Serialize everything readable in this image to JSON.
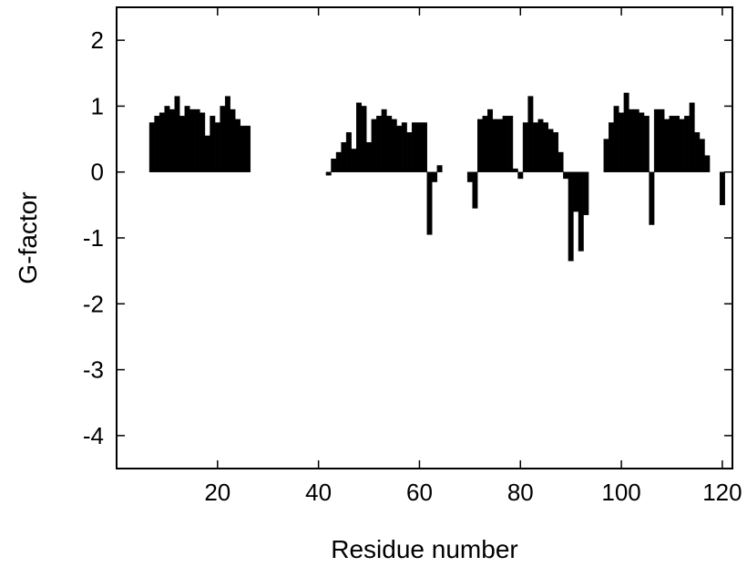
{
  "chart_data": {
    "type": "bar",
    "xlabel": "Residue number",
    "ylabel": "G-factor",
    "xlim": [
      0,
      122
    ],
    "ylim": [
      -4.5,
      2.5
    ],
    "xticks": [
      20,
      40,
      60,
      80,
      100,
      120
    ],
    "yticks": [
      -4,
      -3,
      -2,
      -1,
      0,
      1,
      2
    ],
    "grid": false,
    "legend": "none",
    "bar_color": "#000000",
    "x": [
      7,
      8,
      9,
      10,
      11,
      12,
      13,
      14,
      15,
      16,
      17,
      18,
      19,
      20,
      21,
      22,
      23,
      24,
      25,
      26,
      42,
      43,
      44,
      45,
      46,
      47,
      48,
      49,
      50,
      51,
      52,
      53,
      54,
      55,
      56,
      57,
      58,
      59,
      60,
      61,
      62,
      63,
      64,
      70,
      71,
      72,
      73,
      74,
      75,
      76,
      77,
      78,
      79,
      80,
      81,
      82,
      83,
      84,
      85,
      86,
      87,
      88,
      89,
      90,
      91,
      92,
      93,
      97,
      98,
      99,
      100,
      101,
      102,
      103,
      104,
      105,
      106,
      107,
      108,
      109,
      110,
      111,
      112,
      113,
      114,
      115,
      116,
      117,
      118,
      119,
      120
    ],
    "values": [
      0.75,
      0.85,
      0.9,
      1.0,
      0.95,
      1.15,
      0.85,
      1.0,
      0.95,
      0.95,
      0.9,
      0.55,
      0.85,
      0.75,
      1.0,
      1.15,
      0.95,
      0.8,
      0.7,
      0.7,
      -0.05,
      0.2,
      0.3,
      0.45,
      0.6,
      0.35,
      1.05,
      1.0,
      0.45,
      0.8,
      0.85,
      0.95,
      0.85,
      0.8,
      0.7,
      0.75,
      0.6,
      0.75,
      0.75,
      0.75,
      -0.95,
      -0.15,
      0.1,
      -0.15,
      -0.55,
      0.8,
      0.85,
      0.95,
      0.8,
      0.8,
      0.85,
      0.85,
      0.05,
      -0.1,
      0.75,
      1.15,
      0.75,
      0.8,
      0.75,
      0.65,
      0.6,
      0.3,
      -0.1,
      -1.35,
      -0.6,
      -1.2,
      -0.65,
      0.5,
      0.75,
      1.0,
      0.9,
      1.2,
      0.95,
      0.95,
      0.9,
      0.85,
      -0.8,
      0.95,
      0.95,
      0.8,
      0.85,
      0.85,
      0.8,
      0.85,
      1.05,
      0.6,
      0.5,
      0.25,
      0.0,
      0.0,
      -0.5
    ]
  }
}
